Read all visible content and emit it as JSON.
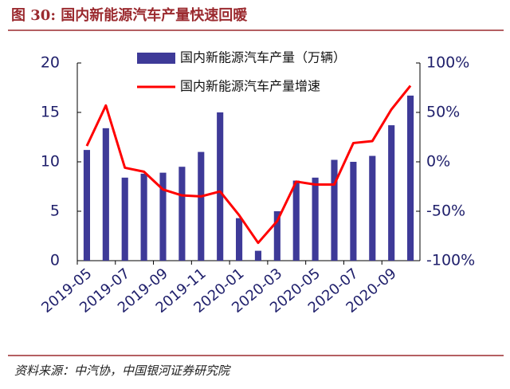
{
  "header": {
    "title": "图 30:  国内新能源汽车产量快速回暖"
  },
  "chart_data": {
    "type": "bar-line",
    "categories": [
      "2019-05",
      null,
      "2019-07",
      null,
      "2019-09",
      null,
      "2019-11",
      null,
      "2020-01",
      null,
      "2020-03",
      null,
      "2020-05",
      null,
      "2020-07",
      null,
      "2020-09",
      null
    ],
    "series": [
      {
        "name": "国内新能源汽车产量（万辆）",
        "type": "bar",
        "color": "#3e3a98",
        "axis": "y",
        "values": [
          11.2,
          13.4,
          8.4,
          8.8,
          8.9,
          9.5,
          11.0,
          15.0,
          4.3,
          1.0,
          5.0,
          8.1,
          8.4,
          10.2,
          10.0,
          10.6,
          13.7,
          16.7
        ]
      },
      {
        "name": "国内新能源汽车产量增速",
        "type": "line",
        "color": "#ff0000",
        "axis": "y2",
        "values": [
          16,
          57,
          -6,
          -10,
          -28,
          -34,
          -35,
          -30,
          -54,
          -82,
          -60,
          -20,
          -23,
          -23,
          19,
          21,
          53,
          77
        ]
      }
    ],
    "ylim": [
      0,
      20
    ],
    "yticks": [
      0,
      5,
      10,
      15,
      20
    ],
    "y2lim": [
      -100,
      100
    ],
    "y2ticks": [
      {
        "value": -100,
        "label": "-100%"
      },
      {
        "value": -50,
        "label": "-50%"
      },
      {
        "value": 0,
        "label": "0%"
      },
      {
        "value": 50,
        "label": "50%"
      },
      {
        "value": 100,
        "label": "100%"
      }
    ]
  },
  "footer": {
    "source": "资料来源：中汽协，中国银河证券研究院"
  }
}
